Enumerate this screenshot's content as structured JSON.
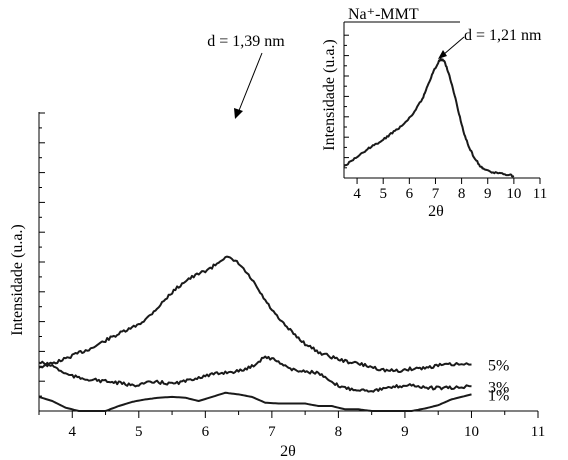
{
  "chart_data": [
    {
      "type": "line",
      "xlabel": "2θ",
      "ylabel": "Intensidade (u.a.)",
      "xlim": [
        3.5,
        11
      ],
      "xticks": [
        "4",
        "5",
        "6",
        "7",
        "8",
        "9",
        "10",
        "11"
      ],
      "series": [
        {
          "name": "5%",
          "x": [
            3.5,
            3.7,
            3.9,
            4.1,
            4.3,
            4.5,
            4.7,
            4.9,
            5.1,
            5.3,
            5.5,
            5.7,
            5.9,
            6.1,
            6.3,
            6.5,
            6.7,
            6.9,
            7.1,
            7.3,
            7.5,
            7.7,
            7.9,
            8.1,
            8.3,
            8.5,
            8.7,
            8.9,
            9.1,
            9.3,
            9.5,
            9.7,
            10.0
          ],
          "y": [
            1.25,
            1.29,
            1.35,
            1.42,
            1.48,
            1.57,
            1.65,
            1.72,
            1.82,
            1.98,
            2.15,
            2.29,
            2.37,
            2.45,
            2.58,
            2.5,
            2.3,
            2.05,
            1.83,
            1.67,
            1.53,
            1.43,
            1.37,
            1.32,
            1.29,
            1.25,
            1.21,
            1.2,
            1.23,
            1.24,
            1.27,
            1.28,
            1.28
          ]
        },
        {
          "name": "3%",
          "x": [
            3.5,
            3.7,
            3.9,
            4.1,
            4.3,
            4.5,
            4.7,
            4.9,
            5.1,
            5.3,
            5.5,
            5.7,
            5.9,
            6.1,
            6.3,
            6.5,
            6.7,
            6.9,
            7.1,
            7.3,
            7.5,
            7.7,
            7.9,
            8.1,
            8.3,
            8.5,
            8.7,
            8.9,
            9.1,
            9.3,
            9.5,
            9.7,
            10.0
          ],
          "y": [
            0.91,
            0.87,
            0.77,
            0.72,
            0.7,
            0.68,
            0.66,
            0.63,
            0.66,
            0.67,
            0.65,
            0.68,
            0.73,
            0.76,
            0.79,
            0.8,
            0.86,
            0.98,
            0.92,
            0.82,
            0.8,
            0.78,
            0.66,
            0.6,
            0.58,
            0.57,
            0.59,
            0.62,
            0.64,
            0.6,
            0.6,
            0.6,
            0.62
          ]
        },
        {
          "name": "1%",
          "x": [
            3.5,
            3.7,
            3.9,
            4.1,
            4.3,
            4.5,
            4.7,
            4.9,
            5.1,
            5.3,
            5.5,
            5.7,
            5.9,
            6.1,
            6.3,
            6.5,
            6.7,
            6.9,
            7.1,
            7.3,
            7.5,
            7.7,
            7.9,
            8.1,
            8.3,
            8.5,
            8.7,
            8.9,
            9.1,
            9.3,
            9.5,
            9.7,
            10.0
          ],
          "y": [
            0.17,
            0.12,
            0.04,
            0.0,
            0.0,
            0.0,
            0.06,
            0.11,
            0.14,
            0.16,
            0.17,
            0.16,
            0.12,
            0.17,
            0.22,
            0.2,
            0.17,
            0.1,
            0.09,
            0.09,
            0.09,
            0.06,
            0.06,
            0.02,
            0.02,
            0.0,
            0.0,
            0.0,
            0.0,
            0.03,
            0.07,
            0.14,
            0.2
          ]
        }
      ],
      "annotations": [
        {
          "text": "d = 1,39 nm",
          "x": 6.3,
          "y": 2.58
        }
      ],
      "grid": false
    },
    {
      "type": "line",
      "title": "Na⁺-MMT",
      "xlabel": "2θ",
      "ylabel": "Intensidade (u.a.)",
      "xlim": [
        3.5,
        11
      ],
      "xticks": [
        "4",
        "5",
        "6",
        "7",
        "8",
        "9",
        "10",
        "11"
      ],
      "series": [
        {
          "name": "Na⁺-MMT",
          "x": [
            3.5,
            3.8,
            4.1,
            4.4,
            4.7,
            5.0,
            5.3,
            5.6,
            5.9,
            6.2,
            6.5,
            6.7,
            6.9,
            7.1,
            7.2,
            7.35,
            7.5,
            7.7,
            7.9,
            8.1,
            8.3,
            8.5,
            8.7,
            8.9,
            9.2,
            9.5,
            9.8,
            10.0
          ],
          "y": [
            0.08,
            0.13,
            0.18,
            0.23,
            0.27,
            0.31,
            0.36,
            0.41,
            0.47,
            0.55,
            0.66,
            0.77,
            0.88,
            0.97,
            1.0,
            0.98,
            0.88,
            0.72,
            0.53,
            0.36,
            0.24,
            0.15,
            0.09,
            0.05,
            0.03,
            0.02,
            0.01,
            0.0
          ]
        }
      ],
      "annotations": [
        {
          "text": "d = 1,21 nm",
          "x": 7.2,
          "y": 1.0
        }
      ],
      "grid": false
    }
  ]
}
